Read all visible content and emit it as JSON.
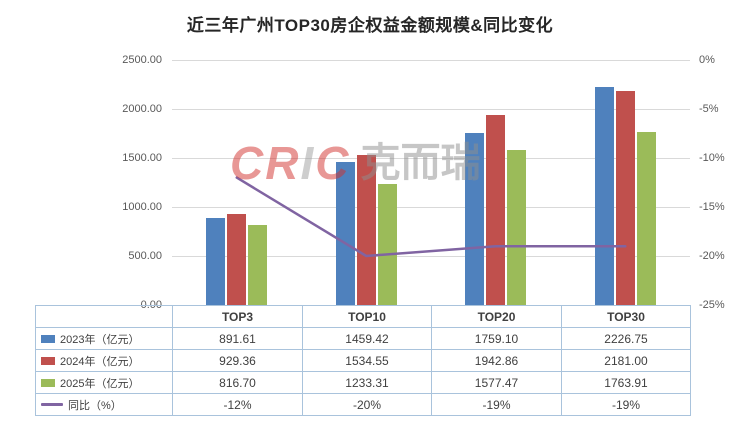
{
  "title": "近三年广州TOP30房企权益金额规模&同比变化",
  "watermark": {
    "brand": "CRIC",
    "brand_cn": "克而瑞"
  },
  "chart_data": {
    "type": "bar",
    "subtype": "grouped-bars-with-line-overlay-and-data-table",
    "categories": [
      "TOP3",
      "TOP10",
      "TOP20",
      "TOP30"
    ],
    "series": [
      {
        "name": "2023年（亿元）",
        "type": "bar",
        "color": "#4F81BD",
        "values": [
          891.61,
          1459.42,
          1759.1,
          2226.75
        ],
        "display": [
          "891.61",
          "1459.42",
          "1759.10",
          "2226.75"
        ]
      },
      {
        "name": "2024年（亿元）",
        "type": "bar",
        "color": "#C0504D",
        "values": [
          929.36,
          1534.55,
          1942.86,
          2181.0
        ],
        "display": [
          "929.36",
          "1534.55",
          "1942.86",
          "2181.00"
        ]
      },
      {
        "name": "2025年（亿元）",
        "type": "bar",
        "color": "#9BBB59",
        "values": [
          816.7,
          1233.31,
          1577.47,
          1763.91
        ],
        "display": [
          "816.70",
          "1233.31",
          "1577.47",
          "1763.91"
        ]
      },
      {
        "name": "同比（%）",
        "type": "line",
        "color": "#8064A2",
        "values": [
          -12,
          -20,
          -19,
          -19
        ],
        "display": [
          "-12%",
          "-20%",
          "-19%",
          "-19%"
        ]
      }
    ],
    "left_axis": {
      "min": 0,
      "max": 2500,
      "ticks": [
        "2500.00",
        "2000.00",
        "1500.00",
        "1000.00",
        "500.00",
        "0.00"
      ]
    },
    "right_axis": {
      "max": 0,
      "min": -25,
      "ticks": [
        "0%",
        "-5%",
        "-10%",
        "-15%",
        "-20%",
        "-25%"
      ]
    },
    "grid": true,
    "legend_position": "table-left-column"
  }
}
